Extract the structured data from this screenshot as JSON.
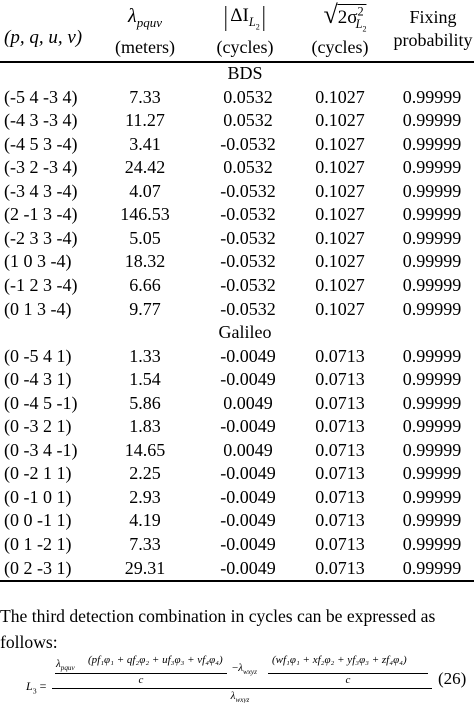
{
  "table": {
    "headers": [
      {
        "text": "(p, q, u, v)"
      },
      {
        "symbol": "λ",
        "subscript": "pquv",
        "unit": "(meters)"
      },
      {
        "symbol": "ΔI",
        "subscript": "L",
        "subsubscript": "2",
        "unit": "(cycles)"
      },
      {
        "symbol": "2σ",
        "superscript": "2",
        "subscript": "L",
        "subsubscript": "2",
        "unit": "(cycles)"
      },
      {
        "lines": [
          "Fixing",
          "probability"
        ]
      }
    ],
    "sections": [
      {
        "name": "BDS",
        "rows": [
          [
            "(-5 4 -3 4)",
            "7.33",
            "0.0532",
            "0.1027",
            "0.99999"
          ],
          [
            "(-4 3 -3 4)",
            "11.27",
            "0.0532",
            "0.1027",
            "0.99999"
          ],
          [
            "(-4 5 3 -4)",
            "3.41",
            "-0.0532",
            "0.1027",
            "0.99999"
          ],
          [
            "(-3 2 -3 4)",
            "24.42",
            "0.0532",
            "0.1027",
            "0.99999"
          ],
          [
            "(-3 4 3 -4)",
            "4.07",
            "-0.0532",
            "0.1027",
            "0.99999"
          ],
          [
            "(2 -1 3 -4)",
            "146.53",
            "-0.0532",
            "0.1027",
            "0.99999"
          ],
          [
            "(-2 3 3 -4)",
            "5.05",
            "-0.0532",
            "0.1027",
            "0.99999"
          ],
          [
            "(1 0 3 -4)",
            "18.32",
            "-0.0532",
            "0.1027",
            "0.99999"
          ],
          [
            "(-1 2 3 -4)",
            "6.66",
            "-0.0532",
            "0.1027",
            "0.99999"
          ],
          [
            "(0 1 3 -4)",
            "9.77",
            "-0.0532",
            "0.1027",
            "0.99999"
          ]
        ]
      },
      {
        "name": "Galileo",
        "rows": [
          [
            "(0 -5 4 1)",
            "1.33",
            "-0.0049",
            "0.0713",
            "0.99999"
          ],
          [
            "(0 -4 3 1)",
            "1.54",
            "-0.0049",
            "0.0713",
            "0.99999"
          ],
          [
            "(0 -4 5 -1)",
            "5.86",
            "0.0049",
            "0.0713",
            "0.99999"
          ],
          [
            "(0 -3 2 1)",
            "1.83",
            "-0.0049",
            "0.0713",
            "0.99999"
          ],
          [
            "(0 -3 4 -1)",
            "14.65",
            "0.0049",
            "0.0713",
            "0.99999"
          ],
          [
            "(0 -2 1 1)",
            "2.25",
            "-0.0049",
            "0.0713",
            "0.99999"
          ],
          [
            "(0 -1 0 1)",
            "2.93",
            "-0.0049",
            "0.0713",
            "0.99999"
          ],
          [
            "(0 0 -1 1)",
            "4.19",
            "-0.0049",
            "0.0713",
            "0.99999"
          ],
          [
            "(0 1 -2 1)",
            "7.33",
            "-0.0049",
            "0.0713",
            "0.99999"
          ],
          [
            "(0 2 -3 1)",
            "29.31",
            "-0.0049",
            "0.0713",
            "0.99999"
          ]
        ]
      }
    ]
  },
  "paragraph": "The third detection combination in cycles  can be expressed as follows:",
  "equation": {
    "lhs": "L",
    "lhs_sub": "3",
    "eq": "=",
    "t1_lambda": "λ",
    "t1_sub": "pquv",
    "t1_num": "(pf₁φ₁ + qf₂φ₂ + uf₃φ₃ + vf₄φ₄)",
    "t1_den": "c",
    "minus": "−",
    "t2_lambda": "λ",
    "t2_sub": "wxyz",
    "t2_num": "(wf₁φ₁ + xf₂φ₂ + yf₃φ₃ + zf₄φ₄)",
    "t2_den": "c",
    "den_lambda": "λ",
    "den_sub": "wxyz",
    "number": "(26)"
  }
}
